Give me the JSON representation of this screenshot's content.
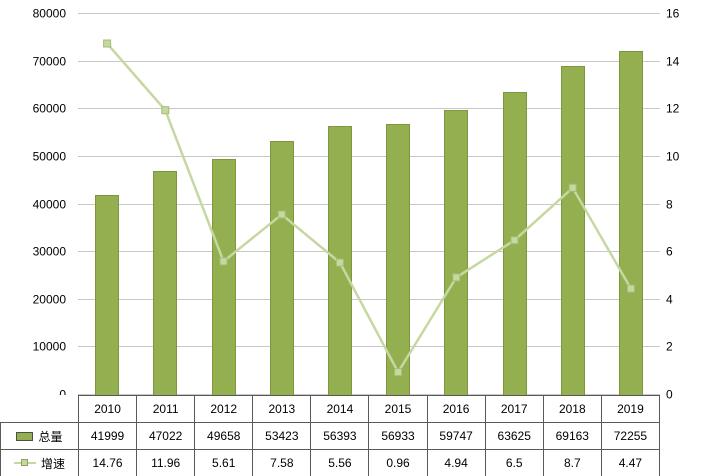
{
  "chart_data": {
    "type": "bar+line",
    "title": "",
    "categories": [
      "2010",
      "2011",
      "2012",
      "2013",
      "2014",
      "2015",
      "2016",
      "2017",
      "2018",
      "2019"
    ],
    "series": [
      {
        "name": "总量",
        "type": "bar",
        "axis": "left",
        "color": "#94AF50",
        "edge_color": "#7E973F",
        "values": [
          41999,
          47022,
          49658,
          53423,
          56393,
          56933,
          59747,
          63625,
          69163,
          72255
        ]
      },
      {
        "name": "增速",
        "type": "line",
        "axis": "right",
        "color": "#C6D8A2",
        "marker_edge": "#A3BD74",
        "values": [
          14.76,
          11.96,
          5.61,
          7.58,
          5.56,
          0.96,
          4.94,
          6.5,
          8.7,
          4.47
        ]
      }
    ],
    "left_axis": {
      "min": 0,
      "max": 80000,
      "step": 10000
    },
    "right_axis": {
      "min": 0,
      "max": 16,
      "step": 2
    },
    "grid": true,
    "legend_position": "data-table-left",
    "colors": {
      "gridline": "#C8C8C8",
      "table_border": "#595959",
      "background": "#FFFFFF",
      "text": "#000000"
    }
  }
}
